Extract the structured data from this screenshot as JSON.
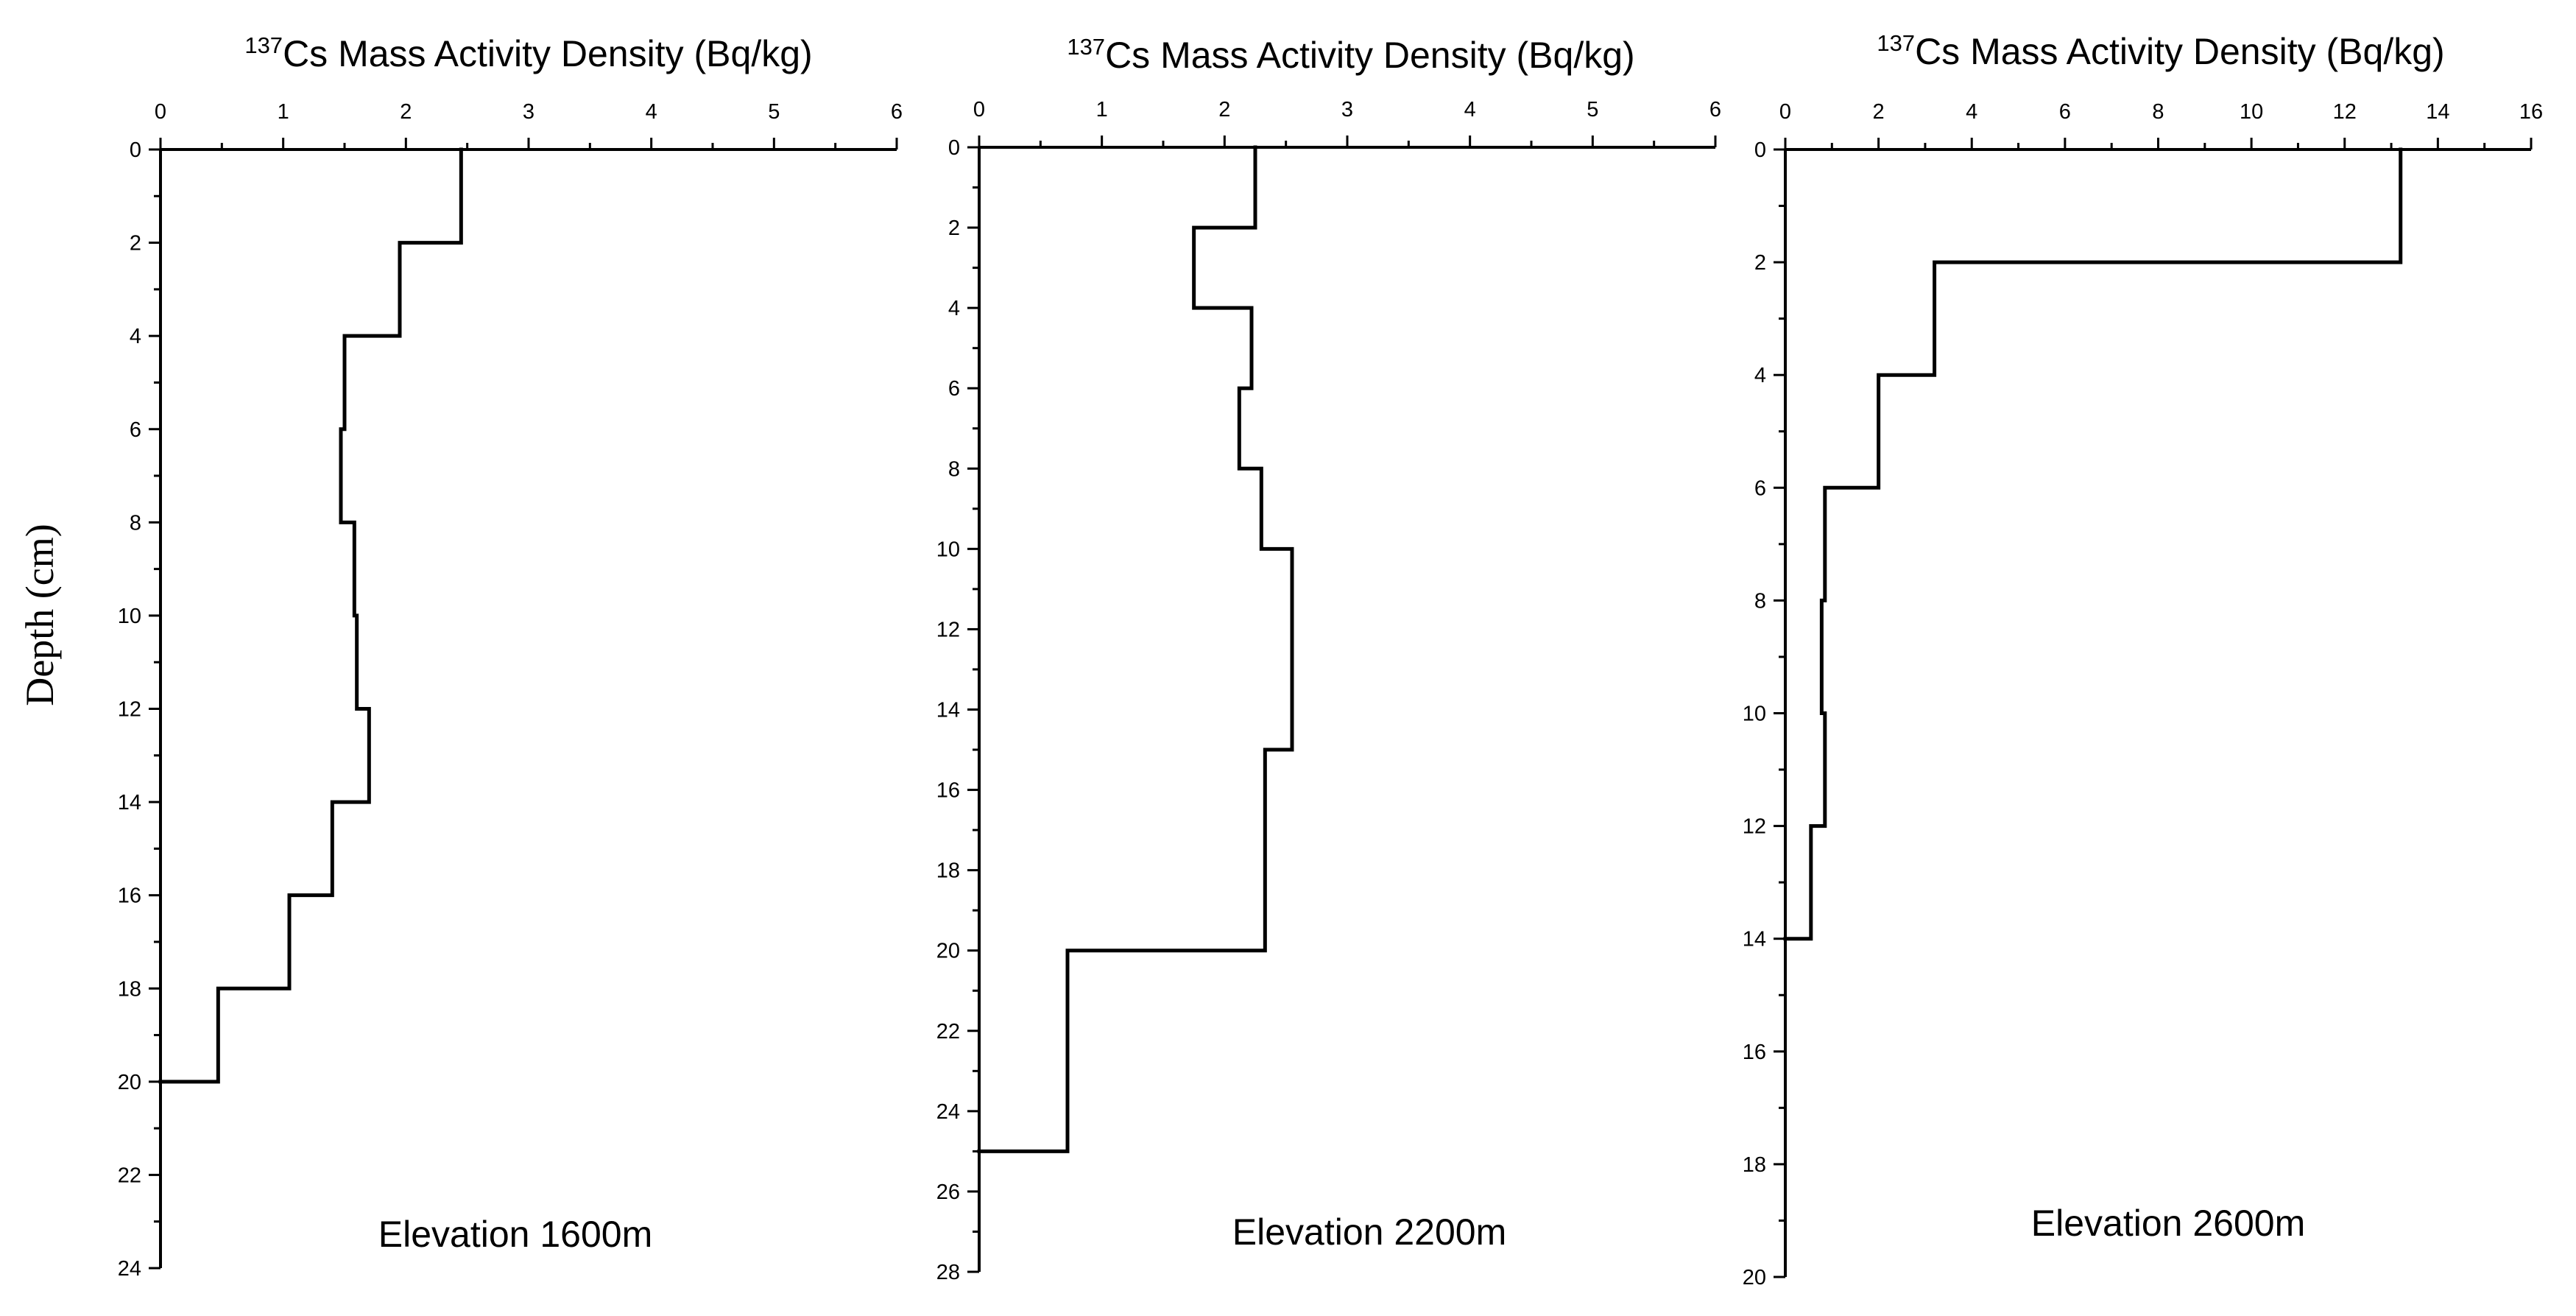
{
  "chart_data": [
    {
      "type": "line",
      "subtype": "step-profile",
      "title_sup": "137",
      "title": "Cs Mass Activity Density (Bq/kg)",
      "xlabel": "137Cs Mass Activity Density (Bq/kg)",
      "ylabel": "Depth (cm)",
      "xlim": [
        0,
        6
      ],
      "ylim": [
        0,
        24
      ],
      "xticks": [
        0,
        1,
        2,
        3,
        4,
        5,
        6
      ],
      "yticks": [
        0,
        2,
        4,
        6,
        8,
        10,
        12,
        14,
        16,
        18,
        20,
        22,
        24
      ],
      "annotation": "Elevation 1600m",
      "segments": [
        {
          "top": 0,
          "bottom": 2,
          "value": 2.45
        },
        {
          "top": 2,
          "bottom": 4,
          "value": 1.95
        },
        {
          "top": 4,
          "bottom": 6,
          "value": 1.5
        },
        {
          "top": 6,
          "bottom": 8,
          "value": 1.47
        },
        {
          "top": 8,
          "bottom": 10,
          "value": 1.58
        },
        {
          "top": 10,
          "bottom": 12,
          "value": 1.6
        },
        {
          "top": 12,
          "bottom": 14,
          "value": 1.7
        },
        {
          "top": 14,
          "bottom": 16,
          "value": 1.4
        },
        {
          "top": 16,
          "bottom": 18,
          "value": 1.05
        },
        {
          "top": 18,
          "bottom": 20,
          "value": 0.47
        }
      ]
    },
    {
      "type": "line",
      "subtype": "step-profile",
      "title_sup": "137",
      "title": "Cs Mass Activity Density (Bq/kg)",
      "xlabel": "137Cs Mass Activity Density (Bq/kg)",
      "ylabel": "Depth (cm)",
      "xlim": [
        0,
        6
      ],
      "ylim": [
        0,
        28
      ],
      "xticks": [
        0,
        1,
        2,
        3,
        4,
        5,
        6
      ],
      "yticks": [
        0,
        2,
        4,
        6,
        8,
        10,
        12,
        14,
        16,
        18,
        20,
        22,
        24,
        26,
        28
      ],
      "annotation": "Elevation 2200m",
      "segments": [
        {
          "top": 0,
          "bottom": 2,
          "value": 2.25
        },
        {
          "top": 2,
          "bottom": 4,
          "value": 1.75
        },
        {
          "top": 4,
          "bottom": 6,
          "value": 2.22
        },
        {
          "top": 6,
          "bottom": 8,
          "value": 2.12
        },
        {
          "top": 8,
          "bottom": 10,
          "value": 2.3
        },
        {
          "top": 10,
          "bottom": 15,
          "value": 2.55
        },
        {
          "top": 15,
          "bottom": 20,
          "value": 2.33
        },
        {
          "top": 20,
          "bottom": 25,
          "value": 0.72
        }
      ]
    },
    {
      "type": "line",
      "subtype": "step-profile",
      "title_sup": "137",
      "title": "Cs Mass Activity Density (Bq/kg)",
      "xlabel": "137Cs Mass Activity Density (Bq/kg)",
      "ylabel": "Depth (cm)",
      "xlim": [
        0,
        16
      ],
      "ylim": [
        0,
        20
      ],
      "xticks": [
        0,
        2,
        4,
        6,
        8,
        10,
        12,
        14,
        16
      ],
      "yticks": [
        0,
        2,
        4,
        6,
        8,
        10,
        12,
        14,
        16,
        18,
        20
      ],
      "annotation": "Elevation 2600m",
      "segments": [
        {
          "top": 0,
          "bottom": 2,
          "value": 13.2
        },
        {
          "top": 2,
          "bottom": 4,
          "value": 3.2
        },
        {
          "top": 4,
          "bottom": 6,
          "value": 2.0
        },
        {
          "top": 6,
          "bottom": 8,
          "value": 0.85
        },
        {
          "top": 8,
          "bottom": 10,
          "value": 0.78
        },
        {
          "top": 10,
          "bottom": 12,
          "value": 0.85
        },
        {
          "top": 12,
          "bottom": 14,
          "value": 0.55
        }
      ]
    }
  ]
}
